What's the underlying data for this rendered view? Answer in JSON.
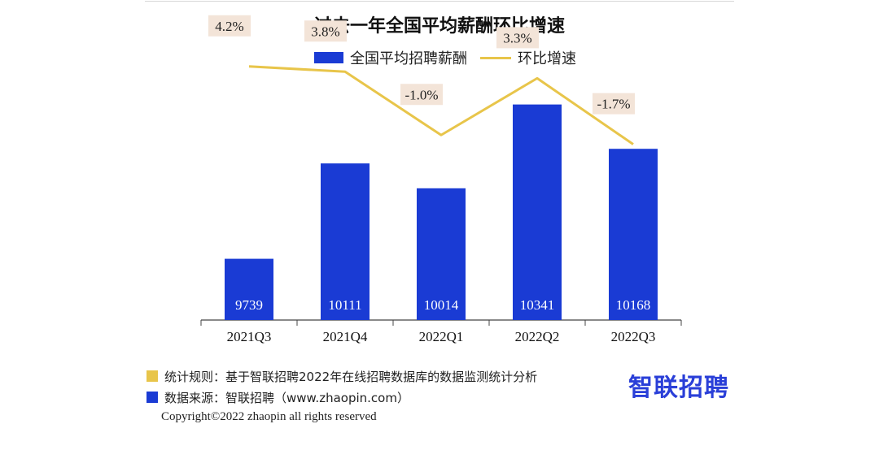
{
  "colors": {
    "bar": "#1a3bd4",
    "line": "#e8c54a",
    "label_bg": "#f3e4d8",
    "axis": "#444444"
  },
  "chart_data": {
    "type": "bar",
    "title": "过去一年全国平均薪酬环比增速",
    "categories": [
      "2021Q3",
      "2021Q4",
      "2022Q1",
      "2022Q2",
      "2022Q3"
    ],
    "series": [
      {
        "name": "全国平均招聘薪酬",
        "kind": "bar",
        "values": [
          9739,
          10111,
          10014,
          10341,
          10168
        ],
        "labels": [
          "9739",
          "10111",
          "10014",
          "10341",
          "10168"
        ]
      },
      {
        "name": "环比增速",
        "kind": "line",
        "values": [
          4.2,
          3.8,
          -1.0,
          3.3,
          -1.7
        ],
        "labels": [
          "4.2%",
          "3.8%",
          "-1.0%",
          "3.3%",
          "-1.7%"
        ]
      }
    ],
    "bar_ylim": [
      9500,
      10400
    ],
    "line_ylim": [
      -8,
      8
    ],
    "legend_position": "top-center",
    "grid": false
  },
  "notes": {
    "rule": "统计规则：基于智联招聘2022年在线招聘数据库的数据监测统计分析",
    "source": "数据来源：智联招聘（www.zhaopin.com）"
  },
  "copyright": "Copyright©2022 zhaopin all rights reserved",
  "brand": "智联招聘"
}
